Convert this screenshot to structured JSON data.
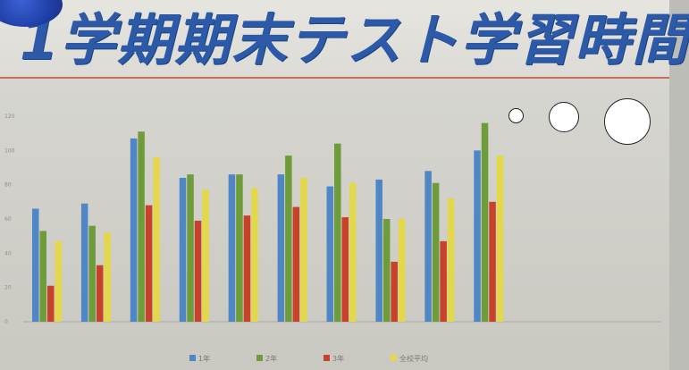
{
  "title": "1学期期末テスト学習時間",
  "colors": {
    "grade1": "#4f86c6",
    "grade2": "#6f9c3a",
    "grade3": "#c8412a",
    "avg": "#e3d84a"
  },
  "chart_data": {
    "type": "bar",
    "title": "1学期期末テスト学習時間",
    "ylim": [
      0,
      120
    ],
    "yticks": [
      "0",
      "20",
      "40",
      "60",
      "80",
      "100",
      "120"
    ],
    "categories": [
      "",
      "",
      "",
      "",
      "",
      "",
      "",
      "",
      "",
      "",
      "",
      "",
      ""
    ],
    "series": [
      {
        "name": "1年",
        "color": "#4f86c6",
        "values": [
          66,
          69,
          107,
          84,
          86,
          86,
          79,
          83,
          88,
          100,
          null,
          null,
          null
        ]
      },
      {
        "name": "2年",
        "color": "#6f9c3a",
        "values": [
          53,
          56,
          111,
          86,
          86,
          97,
          104,
          60,
          81,
          116,
          null,
          null,
          null
        ]
      },
      {
        "name": "3年",
        "color": "#c8412a",
        "values": [
          21,
          33,
          68,
          59,
          62,
          67,
          61,
          35,
          47,
          70,
          null,
          null,
          null
        ]
      },
      {
        "name": "全校平均",
        "color": "#e3d84a",
        "values": [
          47,
          52,
          96,
          77,
          78,
          84,
          81,
          60,
          72,
          97,
          null,
          null,
          null
        ]
      }
    ],
    "legend_position": "bottom",
    "grid": false
  }
}
